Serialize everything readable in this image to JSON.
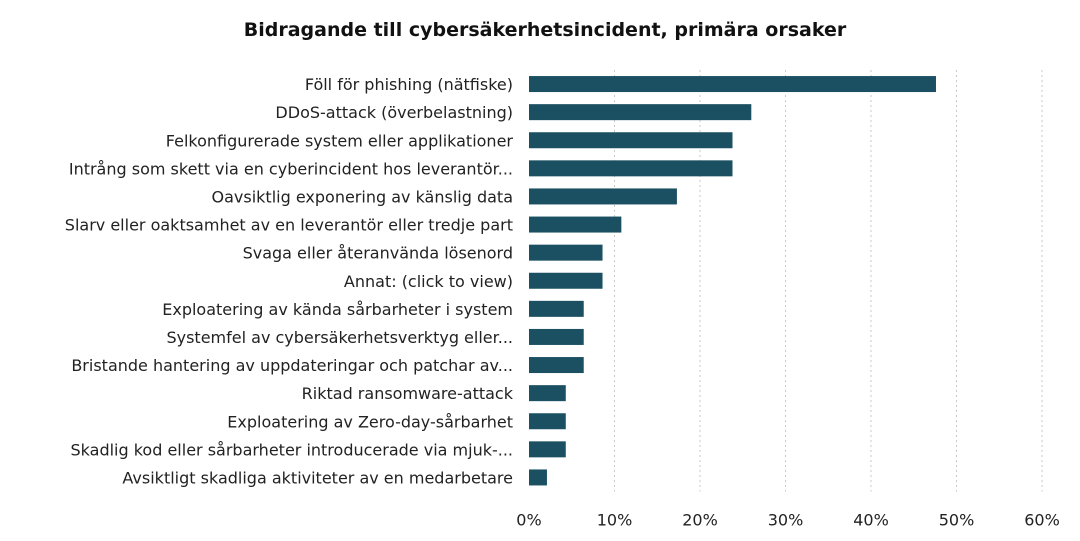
{
  "chart_data": {
    "type": "bar",
    "orientation": "horizontal",
    "title": "Bidragande till cybersäkerhetsincident, primära orsaker",
    "categories": [
      "Föll för phishing (nätfiske)",
      "DDoS-attack (överbelastning)",
      "Felkonfigurerade system eller applikationer",
      "Intrång som skett via en cyberincident hos leverantör...",
      "Oavsiktlig exponering av känslig data",
      "Slarv eller oaktsamhet av en leverantör eller tredje part",
      "Svaga eller återanvända lösenord",
      "Annat: (click to view)",
      "Exploatering av kända sårbarheter i system",
      "Systemfel av cybersäkerhetsverktyg eller...",
      "Bristande hantering av uppdateringar och patchar av...",
      "Riktad ransomware-attack",
      "Exploatering av Zero-day-sårbarhet",
      "Skadlig kod eller sårbarheter introducerade via mjuk-...",
      "Avsiktligt skadliga aktiviteter av en medarbetare"
    ],
    "values": [
      47.6,
      26.0,
      23.8,
      23.8,
      17.3,
      10.8,
      8.6,
      8.6,
      6.4,
      6.4,
      6.4,
      4.3,
      4.3,
      4.3,
      2.1
    ],
    "xlim": [
      0,
      60
    ],
    "xticks": [
      "0%",
      "10%",
      "20%",
      "30%",
      "40%",
      "50%",
      "60%"
    ],
    "xlabel": "",
    "ylabel": "",
    "grid": "vertical-dotted",
    "bar_color": "#1a5062"
  }
}
